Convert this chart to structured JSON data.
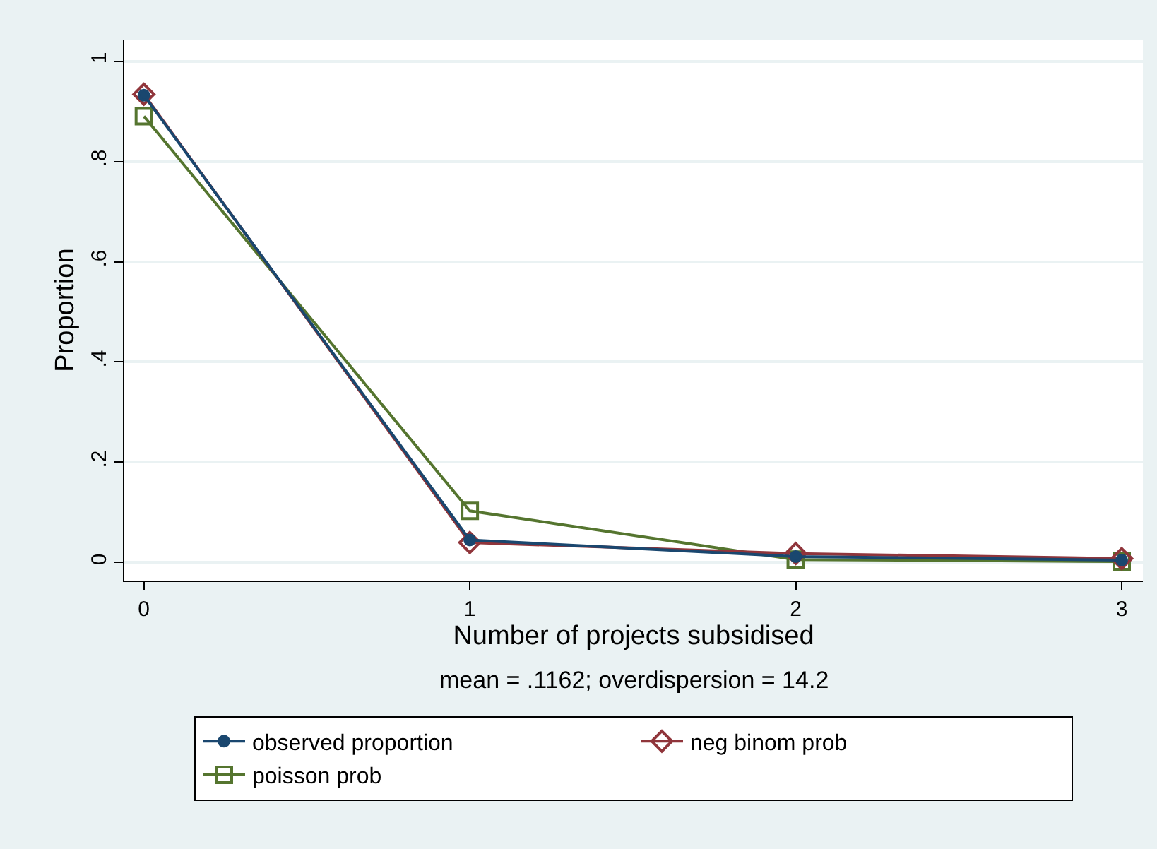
{
  "chart_data": {
    "type": "line",
    "xlabel": "Number of projects subsidised",
    "ylabel": "Proportion",
    "annotations": [
      "mean = .1162; overdispersion = 14.2"
    ],
    "x": [
      0,
      1,
      2,
      3
    ],
    "series": [
      {
        "name": "observed proportion",
        "color": "#1a476f",
        "marker": "circle",
        "values": [
          0.932,
          0.045,
          0.012,
          0.005
        ]
      },
      {
        "name": "neg binom prob",
        "color": "#90353b",
        "marker": "diamond",
        "values": [
          0.934,
          0.04,
          0.018,
          0.008
        ]
      },
      {
        "name": "poisson prob",
        "color": "#55752f",
        "marker": "square",
        "values": [
          0.89,
          0.103,
          0.006,
          0.002
        ]
      }
    ],
    "xlim": [
      -0.06,
      3.065
    ],
    "xticks": [
      0,
      1,
      2,
      3
    ],
    "ylim": [
      -0.036,
      1.043
    ],
    "yticks": [
      {
        "value": 0,
        "label": "0"
      },
      {
        "value": 0.2,
        "label": ".2"
      },
      {
        "value": 0.4,
        "label": ".4"
      },
      {
        "value": 0.6,
        "label": ".6"
      },
      {
        "value": 0.8,
        "label": ".8"
      },
      {
        "value": 1,
        "label": "1"
      }
    ],
    "grid": "y",
    "legend": "bottom",
    "line_style": "solid"
  }
}
